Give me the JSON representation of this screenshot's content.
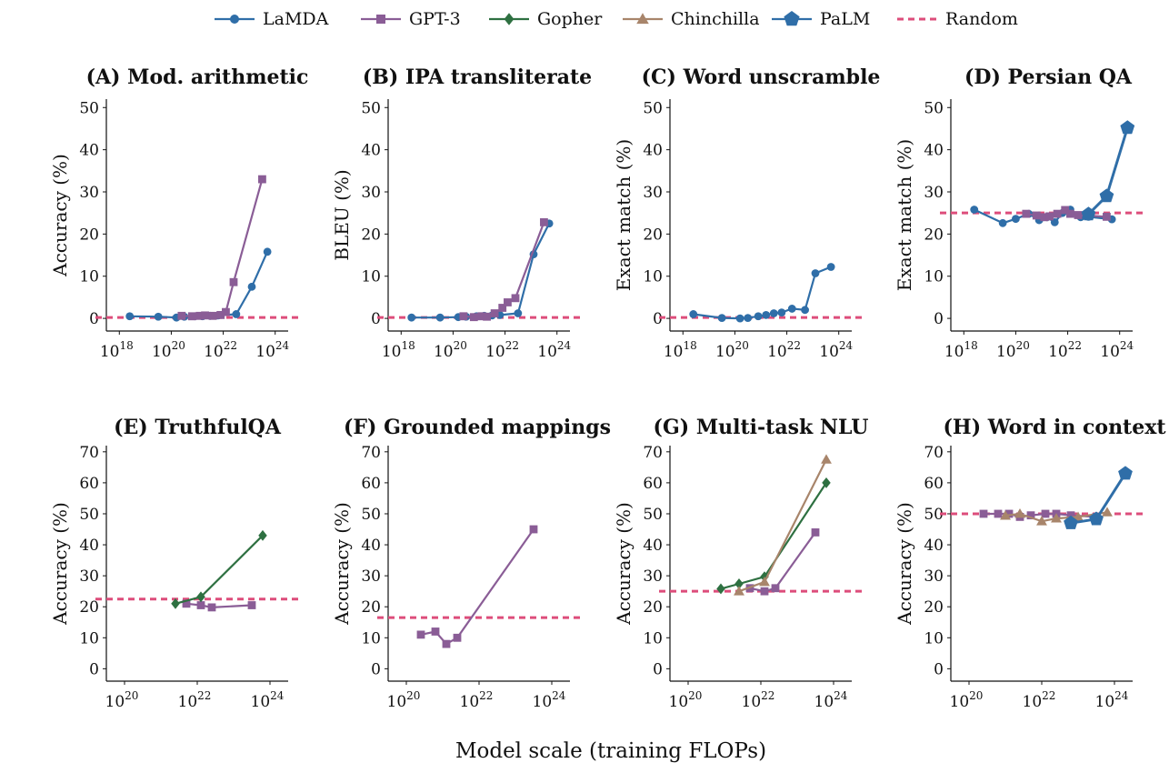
{
  "legend": {
    "items": [
      {
        "name": "LaMDA",
        "color": "#2f6ea8",
        "marker": "circle",
        "dashed": false
      },
      {
        "name": "GPT-3",
        "color": "#8a5d96",
        "marker": "square",
        "dashed": false
      },
      {
        "name": "Gopher",
        "color": "#2e7041",
        "marker": "diamond",
        "dashed": false
      },
      {
        "name": "Chinchilla",
        "color": "#a8856b",
        "marker": "triangle",
        "dashed": false
      },
      {
        "name": "PaLM",
        "color": "#2f6ea8",
        "marker": "pentagon",
        "dashed": false
      },
      {
        "name": "Random",
        "color": "#dd4d7b",
        "marker": "none",
        "dashed": true
      }
    ]
  },
  "xlabel": "Model scale (training FLOPs)",
  "chart_data": [
    {
      "type": "line",
      "title": "(A) Mod. arithmetic",
      "ylabel": "Accuracy (%)",
      "xscale": "log",
      "xlim_exp": [
        17.5,
        24.5
      ],
      "xticks_exp": [
        18,
        20,
        22,
        24
      ],
      "ylim": [
        -3,
        52
      ],
      "yticks": [
        0,
        10,
        20,
        30,
        40,
        50
      ],
      "random": 0.2,
      "series": [
        {
          "name": "LaMDA",
          "points": [
            [
              18.4,
              0.5
            ],
            [
              19.5,
              0.4
            ],
            [
              20.2,
              0.2
            ],
            [
              20.5,
              0.4
            ],
            [
              20.9,
              0.5
            ],
            [
              21.2,
              0.5
            ],
            [
              21.5,
              0.6
            ],
            [
              21.8,
              0.7
            ],
            [
              22.5,
              1.0
            ],
            [
              23.1,
              7.5
            ],
            [
              23.7,
              15.8
            ]
          ]
        },
        {
          "name": "GPT-3",
          "points": [
            [
              20.4,
              0.6
            ],
            [
              20.8,
              0.5
            ],
            [
              21.1,
              0.6
            ],
            [
              21.3,
              0.7
            ],
            [
              21.6,
              0.6
            ],
            [
              21.9,
              0.8
            ],
            [
              22.1,
              1.5
            ],
            [
              22.4,
              8.6
            ],
            [
              23.5,
              33.0
            ]
          ]
        }
      ]
    },
    {
      "type": "line",
      "title": "(B) IPA transliterate",
      "ylabel": "BLEU (%)",
      "xscale": "log",
      "xlim_exp": [
        17.5,
        24.5
      ],
      "xticks_exp": [
        18,
        20,
        22,
        24
      ],
      "ylim": [
        -3,
        52
      ],
      "yticks": [
        0,
        10,
        20,
        30,
        40,
        50
      ],
      "random": 0.2,
      "series": [
        {
          "name": "LaMDA",
          "points": [
            [
              18.4,
              0.2
            ],
            [
              19.5,
              0.2
            ],
            [
              20.2,
              0.3
            ],
            [
              20.5,
              0.4
            ],
            [
              20.9,
              0.5
            ],
            [
              21.2,
              0.6
            ],
            [
              21.5,
              0.7
            ],
            [
              21.8,
              0.8
            ],
            [
              22.5,
              1.2
            ],
            [
              23.1,
              15.2
            ],
            [
              23.7,
              22.5
            ]
          ]
        },
        {
          "name": "GPT-3",
          "points": [
            [
              20.4,
              0.5
            ],
            [
              20.8,
              0.3
            ],
            [
              21.1,
              0.5
            ],
            [
              21.3,
              0.4
            ],
            [
              21.6,
              1.2
            ],
            [
              21.9,
              2.5
            ],
            [
              22.1,
              3.8
            ],
            [
              22.4,
              4.8
            ],
            [
              23.5,
              22.8
            ]
          ]
        }
      ]
    },
    {
      "type": "line",
      "title": "(C) Word unscramble",
      "ylabel": "Exact match (%)",
      "xscale": "log",
      "xlim_exp": [
        17.5,
        24.5
      ],
      "xticks_exp": [
        18,
        20,
        22,
        24
      ],
      "ylim": [
        -3,
        52
      ],
      "yticks": [
        0,
        10,
        20,
        30,
        40,
        50
      ],
      "random": 0.2,
      "series": [
        {
          "name": "LaMDA",
          "points": [
            [
              18.4,
              1.0
            ],
            [
              19.5,
              0.1
            ],
            [
              20.2,
              0.0
            ],
            [
              20.5,
              0.1
            ],
            [
              20.9,
              0.5
            ],
            [
              21.2,
              0.8
            ],
            [
              21.5,
              1.2
            ],
            [
              21.8,
              1.4
            ],
            [
              22.2,
              2.3
            ],
            [
              22.7,
              2.0
            ],
            [
              23.1,
              10.7
            ],
            [
              23.7,
              12.2
            ]
          ]
        }
      ]
    },
    {
      "type": "line",
      "title": "(D) Persian QA",
      "ylabel": "Exact match (%)",
      "xscale": "log",
      "xlim_exp": [
        17.5,
        24.5
      ],
      "xticks_exp": [
        18,
        20,
        22,
        24
      ],
      "ylim": [
        -3,
        52
      ],
      "yticks": [
        0,
        10,
        20,
        30,
        40,
        50
      ],
      "random": 25,
      "series": [
        {
          "name": "LaMDA",
          "points": [
            [
              18.4,
              25.8
            ],
            [
              19.5,
              22.6
            ],
            [
              20.0,
              23.6
            ],
            [
              20.5,
              24.8
            ],
            [
              20.9,
              23.3
            ],
            [
              21.2,
              24.0
            ],
            [
              21.5,
              22.8
            ],
            [
              21.8,
              25.0
            ],
            [
              22.1,
              25.8
            ],
            [
              22.5,
              24.0
            ],
            [
              22.8,
              24.1
            ],
            [
              23.7,
              23.5
            ]
          ]
        },
        {
          "name": "GPT-3",
          "points": [
            [
              20.4,
              24.8
            ],
            [
              20.8,
              24.4
            ],
            [
              21.1,
              24.0
            ],
            [
              21.3,
              24.2
            ],
            [
              21.6,
              24.8
            ],
            [
              21.9,
              25.7
            ],
            [
              22.1,
              24.8
            ],
            [
              22.4,
              24.5
            ],
            [
              23.5,
              24.1
            ]
          ]
        },
        {
          "name": "PaLM",
          "points": [
            [
              22.8,
              24.7
            ],
            [
              23.5,
              29.0
            ],
            [
              24.3,
              45.2
            ]
          ]
        }
      ]
    },
    {
      "type": "line",
      "title": "(E) TruthfulQA",
      "ylabel": "Accuracy (%)",
      "xscale": "log",
      "xlim_exp": [
        19.5,
        24.5
      ],
      "xticks_exp": [
        20,
        22,
        24
      ],
      "ylim": [
        -4,
        72
      ],
      "yticks": [
        0,
        10,
        20,
        30,
        40,
        50,
        60,
        70
      ],
      "random": 22.5,
      "series": [
        {
          "name": "GPT-3",
          "points": [
            [
              21.7,
              21.0
            ],
            [
              22.1,
              20.5
            ],
            [
              22.4,
              19.8
            ],
            [
              23.5,
              20.5
            ]
          ]
        },
        {
          "name": "Gopher",
          "points": [
            [
              21.4,
              21.0
            ],
            [
              22.1,
              23.2
            ],
            [
              23.8,
              43.0
            ]
          ]
        }
      ]
    },
    {
      "type": "line",
      "title": "(F) Grounded mappings",
      "ylabel": "Accuracy (%)",
      "xscale": "log",
      "xlim_exp": [
        19.5,
        24.5
      ],
      "xticks_exp": [
        20,
        22,
        24
      ],
      "ylim": [
        -4,
        72
      ],
      "yticks": [
        0,
        10,
        20,
        30,
        40,
        50,
        60,
        70
      ],
      "random": 16.5,
      "series": [
        {
          "name": "GPT-3",
          "points": [
            [
              20.4,
              11.0
            ],
            [
              20.8,
              12.0
            ],
            [
              21.1,
              8.0
            ],
            [
              21.4,
              10.0
            ],
            [
              23.5,
              45.0
            ]
          ]
        }
      ]
    },
    {
      "type": "line",
      "title": "(G) Multi-task NLU",
      "ylabel": "Accuracy (%)",
      "xscale": "log",
      "xlim_exp": [
        19.5,
        24.5
      ],
      "xticks_exp": [
        20,
        22,
        24
      ],
      "ylim": [
        -4,
        72
      ],
      "yticks": [
        0,
        10,
        20,
        30,
        40,
        50,
        60,
        70
      ],
      "random": 25,
      "series": [
        {
          "name": "GPT-3",
          "points": [
            [
              21.7,
              26.0
            ],
            [
              22.1,
              25.0
            ],
            [
              22.4,
              26.0
            ],
            [
              23.5,
              44.0
            ]
          ]
        },
        {
          "name": "Gopher",
          "points": [
            [
              20.9,
              25.8
            ],
            [
              21.4,
              27.4
            ],
            [
              22.1,
              29.7
            ],
            [
              23.8,
              60.0
            ]
          ]
        },
        {
          "name": "Chinchilla",
          "points": [
            [
              21.4,
              25.0
            ],
            [
              22.1,
              28.0
            ],
            [
              23.8,
              67.5
            ]
          ]
        }
      ]
    },
    {
      "type": "line",
      "title": "(H) Word in context",
      "ylabel": "Accuracy (%)",
      "xscale": "log",
      "xlim_exp": [
        19.5,
        24.5
      ],
      "xticks_exp": [
        20,
        22,
        24
      ],
      "ylim": [
        -4,
        72
      ],
      "yticks": [
        0,
        10,
        20,
        30,
        40,
        50,
        60,
        70
      ],
      "random": 50,
      "series": [
        {
          "name": "GPT-3",
          "points": [
            [
              20.4,
              50.0
            ],
            [
              20.8,
              50.0
            ],
            [
              21.1,
              50.0
            ],
            [
              21.4,
              49.0
            ],
            [
              21.7,
              49.5
            ],
            [
              22.1,
              50.0
            ],
            [
              22.4,
              50.0
            ],
            [
              22.8,
              49.5
            ],
            [
              23.5,
              49.0
            ]
          ]
        },
        {
          "name": "Chinchilla",
          "points": [
            [
              21.0,
              49.4
            ],
            [
              21.4,
              50.0
            ],
            [
              22.0,
              47.6
            ],
            [
              22.4,
              48.5
            ],
            [
              23.0,
              49.0
            ],
            [
              23.8,
              50.5
            ]
          ]
        },
        {
          "name": "PaLM",
          "points": [
            [
              22.8,
              47.0
            ],
            [
              23.5,
              48.3
            ],
            [
              24.3,
              63.0
            ]
          ]
        }
      ]
    }
  ]
}
